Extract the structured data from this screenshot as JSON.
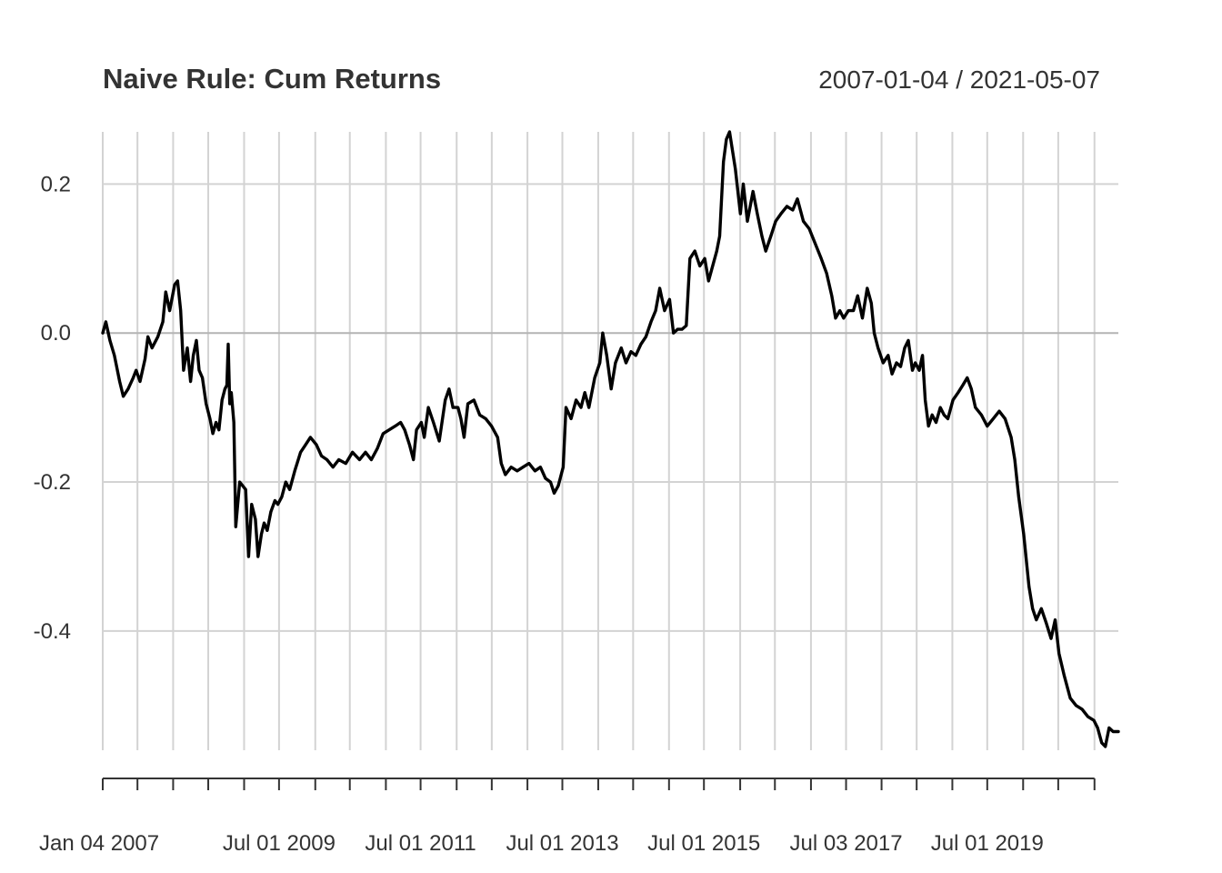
{
  "chart_data": {
    "type": "line",
    "title": "Naive Rule: Cum Returns",
    "date_range": "2007-01-04 / 2021-05-07",
    "xlabel": "",
    "ylabel": "",
    "ylim": [
      -0.56,
      0.27
    ],
    "x_start": "2007-01-04",
    "x_end": "2021-05-07",
    "y_ticks": [
      {
        "value": 0.2,
        "label": "0.2"
      },
      {
        "value": 0.0,
        "label": "0.0"
      },
      {
        "value": -0.2,
        "label": "-0.2"
      },
      {
        "value": -0.4,
        "label": "-0.4"
      }
    ],
    "x_labels": [
      {
        "date": "2007-01-04",
        "label": "Jan 04 2007"
      },
      {
        "date": "2009-07-01",
        "label": "Jul 01 2009"
      },
      {
        "date": "2011-07-01",
        "label": "Jul 01 2011"
      },
      {
        "date": "2013-07-01",
        "label": "Jul 01 2013"
      },
      {
        "date": "2015-07-01",
        "label": "Jul 01 2015"
      },
      {
        "date": "2017-07-03",
        "label": "Jul 03 2017"
      },
      {
        "date": "2019-07-01",
        "label": "Jul 01 2019"
      }
    ],
    "x_ticks": [
      "2007-01-04",
      "2007-07-02",
      "2008-01-02",
      "2008-07-01",
      "2009-01-02",
      "2009-07-01",
      "2010-01-04",
      "2010-07-01",
      "2011-01-03",
      "2011-07-01",
      "2012-01-03",
      "2012-07-02",
      "2013-01-02",
      "2013-07-01",
      "2014-01-02",
      "2014-07-01",
      "2015-01-02",
      "2015-07-01",
      "2016-01-04",
      "2016-07-01",
      "2017-01-03",
      "2017-07-03",
      "2018-01-02",
      "2018-07-02",
      "2019-01-02",
      "2019-07-01",
      "2020-01-02",
      "2020-07-01",
      "2021-01-04"
    ],
    "series": [
      {
        "name": "Cum Returns",
        "points": [
          [
            "2007-01-04",
            0.0
          ],
          [
            "2007-01-20",
            0.015
          ],
          [
            "2007-02-10",
            -0.01
          ],
          [
            "2007-03-05",
            -0.03
          ],
          [
            "2007-04-01",
            -0.065
          ],
          [
            "2007-04-20",
            -0.085
          ],
          [
            "2007-05-15",
            -0.075
          ],
          [
            "2007-06-10",
            -0.06
          ],
          [
            "2007-06-25",
            -0.05
          ],
          [
            "2007-07-15",
            -0.065
          ],
          [
            "2007-08-10",
            -0.035
          ],
          [
            "2007-08-25",
            -0.005
          ],
          [
            "2007-09-15",
            -0.02
          ],
          [
            "2007-10-15",
            -0.005
          ],
          [
            "2007-11-10",
            0.015
          ],
          [
            "2007-11-25",
            0.055
          ],
          [
            "2007-12-15",
            0.03
          ],
          [
            "2008-01-10",
            0.065
          ],
          [
            "2008-01-25",
            0.07
          ],
          [
            "2008-02-10",
            0.03
          ],
          [
            "2008-02-25",
            -0.05
          ],
          [
            "2008-03-15",
            -0.02
          ],
          [
            "2008-04-01",
            -0.065
          ],
          [
            "2008-04-15",
            -0.03
          ],
          [
            "2008-05-01",
            -0.01
          ],
          [
            "2008-05-15",
            -0.05
          ],
          [
            "2008-06-01",
            -0.06
          ],
          [
            "2008-06-20",
            -0.095
          ],
          [
            "2008-07-10",
            -0.115
          ],
          [
            "2008-07-25",
            -0.135
          ],
          [
            "2008-08-10",
            -0.12
          ],
          [
            "2008-08-25",
            -0.13
          ],
          [
            "2008-09-10",
            -0.09
          ],
          [
            "2008-09-25",
            -0.075
          ],
          [
            "2008-10-05",
            -0.07
          ],
          [
            "2008-10-12",
            -0.015
          ],
          [
            "2008-10-20",
            -0.095
          ],
          [
            "2008-10-28",
            -0.08
          ],
          [
            "2008-11-10",
            -0.12
          ],
          [
            "2008-11-20",
            -0.26
          ],
          [
            "2008-12-10",
            -0.2
          ],
          [
            "2009-01-10",
            -0.21
          ],
          [
            "2009-01-25",
            -0.3
          ],
          [
            "2009-02-10",
            -0.23
          ],
          [
            "2009-03-01",
            -0.25
          ],
          [
            "2009-03-15",
            -0.3
          ],
          [
            "2009-04-01",
            -0.27
          ],
          [
            "2009-04-15",
            -0.255
          ],
          [
            "2009-05-01",
            -0.265
          ],
          [
            "2009-05-20",
            -0.24
          ],
          [
            "2009-06-10",
            -0.225
          ],
          [
            "2009-06-25",
            -0.23
          ],
          [
            "2009-07-15",
            -0.22
          ],
          [
            "2009-08-05",
            -0.2
          ],
          [
            "2009-08-25",
            -0.21
          ],
          [
            "2009-09-20",
            -0.185
          ],
          [
            "2009-10-20",
            -0.16
          ],
          [
            "2009-11-15",
            -0.15
          ],
          [
            "2009-12-10",
            -0.14
          ],
          [
            "2010-01-10",
            -0.15
          ],
          [
            "2010-02-05",
            -0.165
          ],
          [
            "2010-03-05",
            -0.17
          ],
          [
            "2010-04-05",
            -0.18
          ],
          [
            "2010-05-05",
            -0.17
          ],
          [
            "2010-06-10",
            -0.175
          ],
          [
            "2010-07-15",
            -0.16
          ],
          [
            "2010-08-20",
            -0.17
          ],
          [
            "2010-09-20",
            -0.16
          ],
          [
            "2010-10-20",
            -0.17
          ],
          [
            "2010-11-20",
            -0.155
          ],
          [
            "2010-12-20",
            -0.135
          ],
          [
            "2011-01-20",
            -0.13
          ],
          [
            "2011-02-20",
            -0.125
          ],
          [
            "2011-03-20",
            -0.12
          ],
          [
            "2011-04-10",
            -0.13
          ],
          [
            "2011-05-05",
            -0.15
          ],
          [
            "2011-05-25",
            -0.17
          ],
          [
            "2011-06-10",
            -0.13
          ],
          [
            "2011-07-05",
            -0.12
          ],
          [
            "2011-07-20",
            -0.14
          ],
          [
            "2011-08-10",
            -0.1
          ],
          [
            "2011-09-05",
            -0.12
          ],
          [
            "2011-10-05",
            -0.145
          ],
          [
            "2011-11-05",
            -0.09
          ],
          [
            "2011-11-25",
            -0.075
          ],
          [
            "2011-12-15",
            -0.1
          ],
          [
            "2012-01-10",
            -0.1
          ],
          [
            "2012-01-25",
            -0.115
          ],
          [
            "2012-02-10",
            -0.14
          ],
          [
            "2012-03-01",
            -0.095
          ],
          [
            "2012-04-01",
            -0.09
          ],
          [
            "2012-05-01",
            -0.11
          ],
          [
            "2012-06-01",
            -0.115
          ],
          [
            "2012-07-01",
            -0.125
          ],
          [
            "2012-08-01",
            -0.14
          ],
          [
            "2012-08-20",
            -0.175
          ],
          [
            "2012-09-10",
            -0.19
          ],
          [
            "2012-10-10",
            -0.18
          ],
          [
            "2012-11-10",
            -0.185
          ],
          [
            "2012-12-10",
            -0.18
          ],
          [
            "2013-01-10",
            -0.175
          ],
          [
            "2013-02-10",
            -0.185
          ],
          [
            "2013-03-10",
            -0.18
          ],
          [
            "2013-04-05",
            -0.195
          ],
          [
            "2013-05-01",
            -0.2
          ],
          [
            "2013-05-20",
            -0.215
          ],
          [
            "2013-06-10",
            -0.205
          ],
          [
            "2013-07-05",
            -0.18
          ],
          [
            "2013-07-20",
            -0.1
          ],
          [
            "2013-08-15",
            -0.115
          ],
          [
            "2013-09-10",
            -0.09
          ],
          [
            "2013-10-05",
            -0.1
          ],
          [
            "2013-10-25",
            -0.08
          ],
          [
            "2013-11-15",
            -0.1
          ],
          [
            "2013-12-15",
            -0.06
          ],
          [
            "2014-01-10",
            -0.04
          ],
          [
            "2014-01-25",
            0.0
          ],
          [
            "2014-02-15",
            -0.03
          ],
          [
            "2014-03-10",
            -0.075
          ],
          [
            "2014-04-01",
            -0.04
          ],
          [
            "2014-05-01",
            -0.02
          ],
          [
            "2014-05-25",
            -0.04
          ],
          [
            "2014-06-20",
            -0.025
          ],
          [
            "2014-07-15",
            -0.03
          ],
          [
            "2014-08-10",
            -0.015
          ],
          [
            "2014-09-05",
            -0.005
          ],
          [
            "2014-10-01",
            0.015
          ],
          [
            "2014-10-25",
            0.03
          ],
          [
            "2014-11-15",
            0.06
          ],
          [
            "2014-12-10",
            0.03
          ],
          [
            "2015-01-05",
            0.045
          ],
          [
            "2015-01-25",
            0.0
          ],
          [
            "2015-02-15",
            0.005
          ],
          [
            "2015-03-10",
            0.005
          ],
          [
            "2015-04-01",
            0.01
          ],
          [
            "2015-04-20",
            0.1
          ],
          [
            "2015-05-15",
            0.11
          ],
          [
            "2015-06-10",
            0.09
          ],
          [
            "2015-07-05",
            0.1
          ],
          [
            "2015-07-25",
            0.07
          ],
          [
            "2015-08-15",
            0.09
          ],
          [
            "2015-09-05",
            0.11
          ],
          [
            "2015-09-20",
            0.13
          ],
          [
            "2015-10-10",
            0.23
          ],
          [
            "2015-10-25",
            0.26
          ],
          [
            "2015-11-10",
            0.27
          ],
          [
            "2015-12-10",
            0.22
          ],
          [
            "2016-01-05",
            0.16
          ],
          [
            "2016-01-20",
            0.2
          ],
          [
            "2016-02-10",
            0.15
          ],
          [
            "2016-03-10",
            0.19
          ],
          [
            "2016-04-01",
            0.16
          ],
          [
            "2016-04-25",
            0.13
          ],
          [
            "2016-05-15",
            0.11
          ],
          [
            "2016-06-10",
            0.13
          ],
          [
            "2016-07-05",
            0.15
          ],
          [
            "2016-08-01",
            0.16
          ],
          [
            "2016-09-01",
            0.17
          ],
          [
            "2016-10-01",
            0.165
          ],
          [
            "2016-10-25",
            0.18
          ],
          [
            "2016-11-25",
            0.15
          ],
          [
            "2016-12-25",
            0.14
          ],
          [
            "2017-01-25",
            0.12
          ],
          [
            "2017-02-25",
            0.1
          ],
          [
            "2017-03-25",
            0.08
          ],
          [
            "2017-04-20",
            0.05
          ],
          [
            "2017-05-10",
            0.02
          ],
          [
            "2017-06-01",
            0.03
          ],
          [
            "2017-06-20",
            0.02
          ],
          [
            "2017-07-15",
            0.03
          ],
          [
            "2017-08-10",
            0.03
          ],
          [
            "2017-09-01",
            0.05
          ],
          [
            "2017-09-25",
            0.02
          ],
          [
            "2017-10-20",
            0.06
          ],
          [
            "2017-11-10",
            0.04
          ],
          [
            "2017-11-25",
            0.0
          ],
          [
            "2017-12-15",
            -0.02
          ],
          [
            "2018-01-10",
            -0.04
          ],
          [
            "2018-02-05",
            -0.03
          ],
          [
            "2018-02-25",
            -0.055
          ],
          [
            "2018-03-20",
            -0.04
          ],
          [
            "2018-04-10",
            -0.045
          ],
          [
            "2018-05-01",
            -0.02
          ],
          [
            "2018-05-20",
            -0.01
          ],
          [
            "2018-06-10",
            -0.05
          ],
          [
            "2018-06-25",
            -0.04
          ],
          [
            "2018-07-15",
            -0.05
          ],
          [
            "2018-08-01",
            -0.03
          ],
          [
            "2018-08-15",
            -0.09
          ],
          [
            "2018-09-01",
            -0.125
          ],
          [
            "2018-09-20",
            -0.11
          ],
          [
            "2018-10-10",
            -0.12
          ],
          [
            "2018-11-01",
            -0.1
          ],
          [
            "2018-11-20",
            -0.11
          ],
          [
            "2018-12-10",
            -0.115
          ],
          [
            "2019-01-05",
            -0.09
          ],
          [
            "2019-02-01",
            -0.08
          ],
          [
            "2019-02-25",
            -0.07
          ],
          [
            "2019-03-20",
            -0.06
          ],
          [
            "2019-04-10",
            -0.075
          ],
          [
            "2019-05-01",
            -0.1
          ],
          [
            "2019-06-01",
            -0.11
          ],
          [
            "2019-07-01",
            -0.125
          ],
          [
            "2019-08-01",
            -0.115
          ],
          [
            "2019-09-01",
            -0.105
          ],
          [
            "2019-10-01",
            -0.115
          ],
          [
            "2019-11-01",
            -0.14
          ],
          [
            "2019-11-20",
            -0.17
          ],
          [
            "2019-12-10",
            -0.22
          ],
          [
            "2020-01-05",
            -0.27
          ],
          [
            "2020-02-01",
            -0.34
          ],
          [
            "2020-02-20",
            -0.37
          ],
          [
            "2020-03-10",
            -0.385
          ],
          [
            "2020-04-05",
            -0.37
          ],
          [
            "2020-05-01",
            -0.39
          ],
          [
            "2020-05-25",
            -0.41
          ],
          [
            "2020-06-15",
            -0.385
          ],
          [
            "2020-07-05",
            -0.43
          ],
          [
            "2020-08-01",
            -0.46
          ],
          [
            "2020-09-01",
            -0.49
          ],
          [
            "2020-10-01",
            -0.5
          ],
          [
            "2020-11-01",
            -0.505
          ],
          [
            "2020-12-01",
            -0.515
          ],
          [
            "2021-01-01",
            -0.52
          ],
          [
            "2021-01-20",
            -0.53
          ],
          [
            "2021-02-10",
            -0.55
          ],
          [
            "2021-03-01",
            -0.555
          ],
          [
            "2021-03-20",
            -0.53
          ],
          [
            "2021-04-10",
            -0.535
          ],
          [
            "2021-05-07",
            -0.535
          ]
        ]
      }
    ]
  }
}
